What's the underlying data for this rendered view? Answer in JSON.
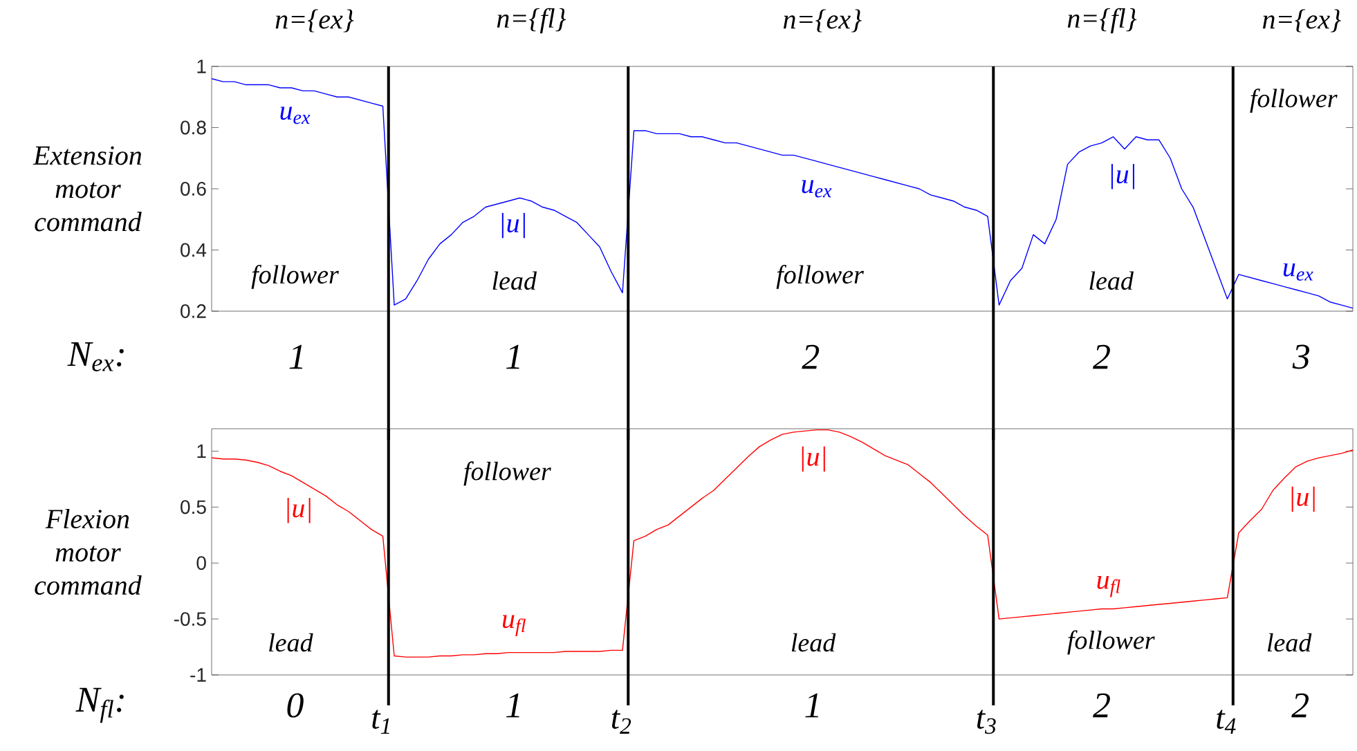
{
  "chart_data": [
    {
      "type": "line",
      "ylabel": "Extension motor command",
      "xlabel": "N$_{ex}$:",
      "categories": [
        null,
        null,
        null,
        null,
        null,
        null,
        null,
        null,
        null,
        null,
        null,
        null,
        null,
        null,
        null,
        null,
        null,
        null,
        null,
        null,
        null,
        null,
        null,
        null,
        null,
        null,
        null,
        null,
        null,
        null,
        null,
        null,
        null,
        null,
        null,
        null,
        null,
        null,
        null,
        null,
        null,
        null,
        null,
        null,
        null,
        null,
        null,
        null,
        null,
        null,
        null,
        null,
        null,
        null,
        null,
        null,
        null,
        null,
        null,
        null,
        null,
        null,
        null,
        null,
        null,
        null,
        null,
        null,
        null,
        null,
        null,
        null,
        null,
        null,
        null,
        null,
        null,
        null,
        null,
        null,
        null,
        null,
        null,
        null,
        null,
        null,
        null,
        null,
        null,
        null,
        null,
        null,
        null,
        null,
        null,
        null,
        null,
        null,
        null,
        null,
        null
      ],
      "ylim": [
        0.2,
        1
      ],
      "yticks": [
        0.2,
        0.4,
        0.6,
        0.8,
        1
      ],
      "series": [
        {
          "color": "#0000ff",
          "values": [
            0.96,
            0.95,
            0.95,
            0.94,
            0.94,
            0.94,
            0.93,
            0.93,
            0.92,
            0.92,
            0.91,
            0.9,
            0.9,
            0.89,
            0.88,
            0.87,
            0.22,
            0.24,
            0.3,
            0.37,
            0.42,
            0.45,
            0.49,
            0.51,
            0.54,
            0.55,
            0.56,
            0.57,
            0.56,
            0.54,
            0.53,
            0.51,
            0.49,
            0.45,
            0.41,
            0.33,
            0.26,
            0.79,
            0.79,
            0.78,
            0.78,
            0.78,
            0.77,
            0.77,
            0.76,
            0.75,
            0.75,
            0.74,
            0.73,
            0.72,
            0.71,
            0.71,
            0.7,
            0.69,
            0.68,
            0.67,
            0.66,
            0.65,
            0.64,
            0.63,
            0.62,
            0.61,
            0.6,
            0.58,
            0.57,
            0.56,
            0.54,
            0.53,
            0.51,
            0.22,
            0.3,
            0.34,
            0.45,
            0.42,
            0.5,
            0.68,
            0.72,
            0.74,
            0.75,
            0.77,
            0.73,
            0.77,
            0.76,
            0.76,
            0.7,
            0.6,
            0.54,
            0.44,
            0.34,
            0.24,
            0.32,
            0.31,
            0.3,
            0.29,
            0.28,
            0.27,
            0.26,
            0.25,
            0.23,
            0.22,
            0.21
          ]
        }
      ],
      "annotations": [
        "n={ex}",
        "n={fl}",
        "n={ex}",
        "n={fl}",
        "n={ex}",
        "1",
        "1",
        "2",
        "2",
        "3",
        "u$_{ex}$",
        "follower",
        "|u|",
        "lead",
        "u$_{ex}$",
        "follower",
        "|u|",
        "lead",
        "follower",
        "u$_{ex}$"
      ]
    },
    {
      "type": "line",
      "ylabel": "Flexion motor command",
      "xlabel": "N$_{fl}$:",
      "categories": [
        null,
        null,
        null,
        null,
        null,
        null,
        null,
        null,
        null,
        null,
        null,
        null,
        null,
        null,
        null,
        null,
        null,
        null,
        null,
        null,
        null,
        null,
        null,
        null,
        null,
        null,
        null,
        null,
        null,
        null,
        null,
        null,
        null,
        null,
        null,
        null,
        null,
        null,
        null,
        null,
        null,
        null,
        null,
        null,
        null,
        null,
        null,
        null,
        null,
        null,
        null,
        null,
        null,
        null,
        null,
        null,
        null,
        null,
        null,
        null,
        null,
        null,
        null,
        null,
        null,
        null,
        null,
        null,
        null,
        null,
        null,
        null,
        null,
        null,
        null,
        null,
        null,
        null,
        null,
        null,
        null,
        null,
        null,
        null,
        null,
        null,
        null,
        null,
        null,
        null,
        null,
        null,
        null,
        null,
        null,
        null,
        null,
        null,
        null,
        null,
        null
      ],
      "ylim": [
        -1,
        1.2
      ],
      "yticks": [
        -1,
        -0.5,
        0,
        0.5,
        1
      ],
      "series": [
        {
          "color": "#ff0000",
          "values": [
            0.94,
            0.93,
            0.93,
            0.92,
            0.9,
            0.87,
            0.82,
            0.78,
            0.72,
            0.66,
            0.6,
            0.52,
            0.46,
            0.38,
            0.3,
            0.24,
            -0.83,
            -0.84,
            -0.84,
            -0.84,
            -0.83,
            -0.83,
            -0.82,
            -0.82,
            -0.81,
            -0.81,
            -0.8,
            -0.8,
            -0.8,
            -0.8,
            -0.8,
            -0.79,
            -0.79,
            -0.79,
            -0.79,
            -0.78,
            -0.78,
            0.2,
            0.24,
            0.3,
            0.34,
            0.42,
            0.5,
            0.58,
            0.65,
            0.75,
            0.85,
            0.95,
            1.04,
            1.1,
            1.15,
            1.17,
            1.18,
            1.19,
            1.19,
            1.17,
            1.13,
            1.08,
            1.02,
            0.96,
            0.92,
            0.88,
            0.8,
            0.72,
            0.62,
            0.52,
            0.42,
            0.33,
            0.25,
            -0.5,
            -0.49,
            -0.48,
            -0.47,
            -0.46,
            -0.45,
            -0.44,
            -0.43,
            -0.42,
            -0.41,
            -0.41,
            -0.4,
            -0.39,
            -0.38,
            -0.37,
            -0.36,
            -0.35,
            -0.34,
            -0.33,
            -0.32,
            -0.31,
            0.27,
            0.38,
            0.48,
            0.65,
            0.76,
            0.86,
            0.91,
            0.94,
            0.96,
            0.98,
            1.01
          ]
        }
      ],
      "annotations": [
        "0",
        "1",
        "1",
        "2",
        "2",
        "t$_{1}$",
        "t$_{2}$",
        "t$_{3}$",
        "t$_{4}$",
        "|u|",
        "lead",
        "follower",
        "u$_{fl}$",
        "|u|",
        "lead",
        "u$_{fl}$",
        "follower",
        "|u|",
        "lead"
      ]
    }
  ]
}
